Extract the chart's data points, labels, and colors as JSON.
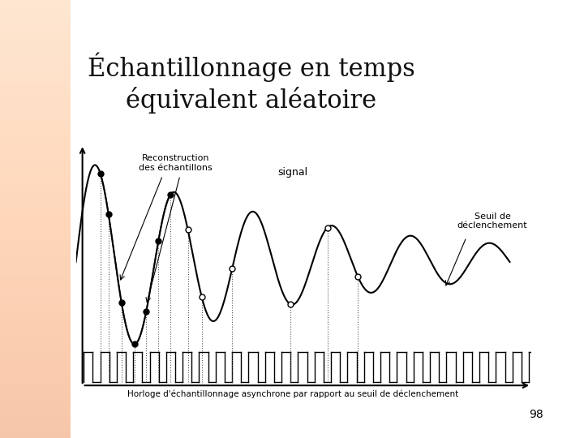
{
  "title_line1": "Échantillonnage en temps",
  "title_line2": "équivalent aléatoire",
  "title_fontsize": 22,
  "bg_color": "#ffffff",
  "signal_color": "#000000",
  "clock_color": "#000000",
  "sample_filled_color": "#222222",
  "sample_open_color": "#ffffff",
  "annotation_color": "#000000",
  "label_signal": "signal",
  "label_seuil": "Seuil de\ndéclenchement",
  "label_reconstruction": "Reconstruction\ndes échantillons",
  "label_horloge": "Horloge d'échantillonnage asynchrone par rapport au seuil de déclenchement",
  "page_number": "98",
  "axis_color": "#000000",
  "signal_amplitude": 1.0,
  "signal_decay": 0.18,
  "signal_freq": 1.0
}
